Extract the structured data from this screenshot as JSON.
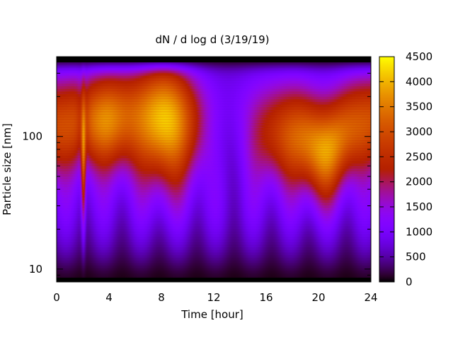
{
  "chart_data": {
    "type": "heatmap",
    "title": "dN / d log d (3/19/19)",
    "xlabel": "Time [hour]",
    "ylabel": "Particle size [nm]",
    "x_ticks": [
      "0",
      "4",
      "8",
      "12",
      "16",
      "20",
      "24"
    ],
    "y_ticks": [
      "10",
      "100"
    ],
    "colorbar_ticks": [
      "0",
      "500",
      "1000",
      "1500",
      "2000",
      "2500",
      "3000",
      "3500",
      "4000",
      "4500"
    ],
    "xlim": [
      0,
      24
    ],
    "ylim_nm": [
      8,
      400
    ],
    "y_scale": "log",
    "zlim": [
      0,
      4500
    ],
    "colormap": "gnuplot (black-blue-purple-red-orange-yellow)",
    "grid": false,
    "legend": "colorbar right",
    "description_of_field": {
      "peak_band_nm": [
        60,
        250
      ],
      "max_value_approx": 4200,
      "max_time_hour": 8.4,
      "low_region_time_hour": [
        10.5,
        15.5
      ]
    }
  }
}
